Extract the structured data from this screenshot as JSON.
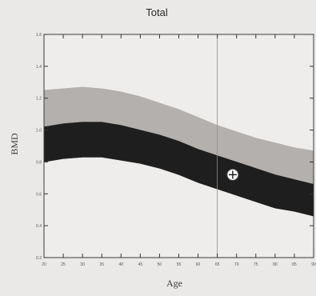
{
  "chart_data": {
    "type": "area",
    "title": "Total",
    "xlabel": "Age",
    "ylabel": "BMD",
    "xlim": [
      20,
      90
    ],
    "ylim": [
      0.2,
      1.6
    ],
    "x_ticks": [
      20,
      25,
      30,
      35,
      40,
      45,
      50,
      55,
      60,
      65,
      70,
      75,
      80,
      85,
      90
    ],
    "y_ticks": [
      0.2,
      0.4,
      0.6,
      0.8,
      1.0,
      1.2,
      1.4,
      1.6
    ],
    "x_tick_labels": [
      "20",
      "25",
      "30",
      "35",
      "40",
      "45",
      "50",
      "55",
      "60",
      "65",
      "70",
      "75",
      "80",
      "85",
      "90"
    ],
    "y_tick_labels": [
      "0.2",
      "0.4",
      "0.6",
      "0.8",
      "1.0",
      "1.2",
      "1.4",
      "1.6"
    ],
    "bands": [
      {
        "color": "#b3b0ad",
        "x": [
          20,
          25,
          30,
          35,
          40,
          45,
          50,
          55,
          60,
          65,
          70,
          75,
          80,
          85,
          90
        ],
        "upper": [
          1.25,
          1.26,
          1.27,
          1.26,
          1.24,
          1.21,
          1.17,
          1.13,
          1.08,
          1.03,
          0.99,
          0.95,
          0.92,
          0.89,
          0.87
        ],
        "lower": [
          1.02,
          1.04,
          1.05,
          1.05,
          1.03,
          1.0,
          0.97,
          0.93,
          0.88,
          0.84,
          0.8,
          0.76,
          0.72,
          0.69,
          0.66
        ]
      },
      {
        "color": "#1e1e1e",
        "x": [
          20,
          25,
          30,
          35,
          40,
          45,
          50,
          55,
          60,
          65,
          70,
          75,
          80,
          85,
          90
        ],
        "upper": [
          1.02,
          1.04,
          1.05,
          1.05,
          1.03,
          1.0,
          0.97,
          0.93,
          0.88,
          0.84,
          0.8,
          0.76,
          0.72,
          0.69,
          0.66
        ],
        "lower": [
          0.8,
          0.82,
          0.83,
          0.83,
          0.81,
          0.79,
          0.76,
          0.72,
          0.67,
          0.63,
          0.59,
          0.55,
          0.51,
          0.49,
          0.46
        ]
      }
    ],
    "points": [
      {
        "x": 69,
        "y": 0.72
      }
    ],
    "reference_line_x": 65
  }
}
